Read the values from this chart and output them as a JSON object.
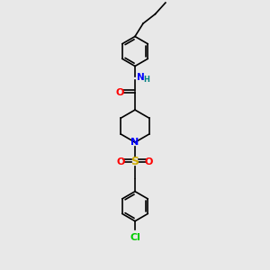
{
  "background_color": "#e8e8e8",
  "bond_color": "#000000",
  "colors": {
    "N": "#0000ff",
    "O": "#ff0000",
    "S": "#ccaa00",
    "Cl": "#00cc00",
    "H": "#008080"
  },
  "lw": 1.2,
  "ring_r": 0.55,
  "xlim": [
    0,
    7
  ],
  "ylim": [
    0,
    10
  ]
}
